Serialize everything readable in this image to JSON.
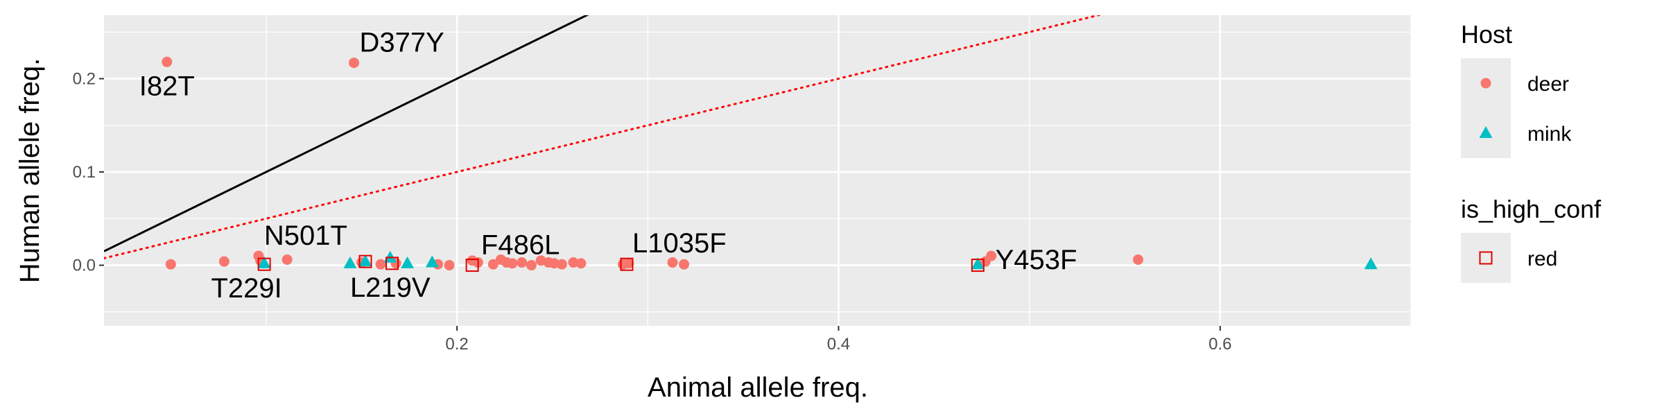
{
  "colors": {
    "deer": "#F8766D",
    "mink": "#00BFC4",
    "high_conf": "#E00000",
    "panel_bg": "#EBEBEB",
    "grid": "#FFFFFF",
    "diag_line": "#000000",
    "ratio_line": "#FF0000"
  },
  "chart_data": {
    "type": "scatter",
    "xlabel": "Animal allele freq.",
    "ylabel": "Human allele freq.",
    "xlim": [
      0.015,
      0.7
    ],
    "ylim": [
      -0.065,
      0.268
    ],
    "x_ticks": [
      0.2,
      0.4,
      0.6
    ],
    "x_tick_labels": [
      "0.2",
      "0.4",
      "0.6"
    ],
    "y_ticks": [
      0.0,
      0.1,
      0.2
    ],
    "y_tick_labels": [
      "0.0",
      "0.1",
      "0.2"
    ],
    "grid": true,
    "reference_lines": [
      {
        "style": "solid",
        "slope": 1,
        "intercept": 0
      },
      {
        "style": "dotted",
        "slope": 0.5,
        "intercept": 0
      }
    ],
    "legends": [
      {
        "title": "Host",
        "entries": [
          {
            "label": "deer",
            "shape": "circle",
            "color_key": "deer"
          },
          {
            "label": "mink",
            "shape": "triangle",
            "color_key": "mink"
          }
        ]
      },
      {
        "title": "is_high_conf",
        "entries": [
          {
            "label": "red",
            "shape": "open-square",
            "color_key": "high_conf"
          }
        ]
      }
    ],
    "points": [
      {
        "x": 0.048,
        "y": 0.218,
        "host": "deer"
      },
      {
        "x": 0.146,
        "y": 0.217,
        "host": "deer"
      },
      {
        "x": 0.05,
        "y": 0.001,
        "host": "deer"
      },
      {
        "x": 0.078,
        "y": 0.004,
        "host": "deer"
      },
      {
        "x": 0.096,
        "y": 0.01,
        "host": "deer"
      },
      {
        "x": 0.097,
        "y": 0.005,
        "host": "deer"
      },
      {
        "x": 0.111,
        "y": 0.006,
        "host": "deer"
      },
      {
        "x": 0.15,
        "y": 0.003,
        "host": "deer"
      },
      {
        "x": 0.16,
        "y": 0.001,
        "host": "deer"
      },
      {
        "x": 0.168,
        "y": 0.002,
        "host": "deer"
      },
      {
        "x": 0.19,
        "y": 0.001,
        "host": "deer"
      },
      {
        "x": 0.196,
        "y": 0.0,
        "host": "deer"
      },
      {
        "x": 0.208,
        "y": 0.005,
        "host": "deer"
      },
      {
        "x": 0.211,
        "y": 0.003,
        "host": "deer"
      },
      {
        "x": 0.219,
        "y": 0.001,
        "host": "deer"
      },
      {
        "x": 0.223,
        "y": 0.006,
        "host": "deer"
      },
      {
        "x": 0.226,
        "y": 0.003,
        "host": "deer"
      },
      {
        "x": 0.229,
        "y": 0.002,
        "host": "deer"
      },
      {
        "x": 0.234,
        "y": 0.003,
        "host": "deer"
      },
      {
        "x": 0.239,
        "y": 0.0,
        "host": "deer"
      },
      {
        "x": 0.244,
        "y": 0.005,
        "host": "deer"
      },
      {
        "x": 0.248,
        "y": 0.003,
        "host": "deer"
      },
      {
        "x": 0.251,
        "y": 0.002,
        "host": "deer"
      },
      {
        "x": 0.255,
        "y": 0.001,
        "host": "deer"
      },
      {
        "x": 0.261,
        "y": 0.003,
        "host": "deer"
      },
      {
        "x": 0.265,
        "y": 0.002,
        "host": "deer"
      },
      {
        "x": 0.287,
        "y": 0.001,
        "host": "deer"
      },
      {
        "x": 0.29,
        "y": 0.002,
        "host": "deer"
      },
      {
        "x": 0.313,
        "y": 0.003,
        "host": "deer"
      },
      {
        "x": 0.319,
        "y": 0.001,
        "host": "deer"
      },
      {
        "x": 0.477,
        "y": 0.004,
        "host": "deer"
      },
      {
        "x": 0.48,
        "y": 0.01,
        "host": "deer"
      },
      {
        "x": 0.557,
        "y": 0.006,
        "host": "deer"
      },
      {
        "x": 0.099,
        "y": 0.002,
        "host": "mink"
      },
      {
        "x": 0.144,
        "y": 0.002,
        "host": "mink"
      },
      {
        "x": 0.152,
        "y": 0.004,
        "host": "mink"
      },
      {
        "x": 0.165,
        "y": 0.008,
        "host": "mink"
      },
      {
        "x": 0.174,
        "y": 0.002,
        "host": "mink"
      },
      {
        "x": 0.187,
        "y": 0.003,
        "host": "mink"
      },
      {
        "x": 0.473,
        "y": 0.001,
        "host": "mink"
      },
      {
        "x": 0.679,
        "y": 0.001,
        "host": "mink"
      }
    ],
    "high_conf_points": [
      {
        "x": 0.099,
        "y": 0.001
      },
      {
        "x": 0.152,
        "y": 0.004
      },
      {
        "x": 0.166,
        "y": 0.002
      },
      {
        "x": 0.208,
        "y": 0.0
      },
      {
        "x": 0.289,
        "y": 0.001
      },
      {
        "x": 0.473,
        "y": 0.0
      }
    ],
    "labels": [
      {
        "text": "I82T",
        "x": 0.048,
        "y": 0.218,
        "pos": "below"
      },
      {
        "text": "D377Y",
        "x": 0.146,
        "y": 0.217,
        "pos": "above-right"
      },
      {
        "text": "N501T",
        "x": 0.096,
        "y": 0.01,
        "pos": "above-right"
      },
      {
        "text": "T229I",
        "x": 0.097,
        "y": 0.001,
        "pos": "below-left"
      },
      {
        "text": "L219V",
        "x": 0.165,
        "y": 0.002,
        "pos": "below"
      },
      {
        "text": "F486L",
        "x": 0.226,
        "y": 0.003,
        "pos": "above"
      },
      {
        "text": "L1035F",
        "x": 0.289,
        "y": 0.002,
        "pos": "above-right"
      },
      {
        "text": "Y453F",
        "x": 0.48,
        "y": 0.005,
        "pos": "right"
      }
    ]
  }
}
